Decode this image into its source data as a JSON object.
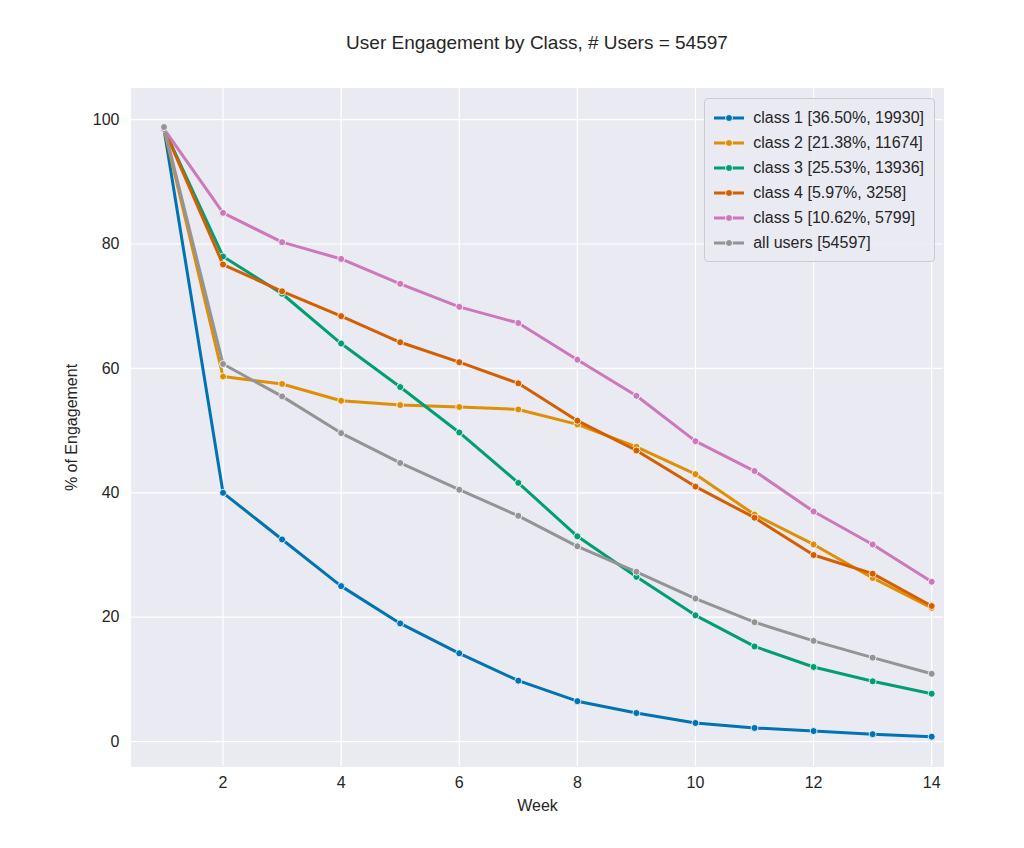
{
  "chart_data": {
    "type": "line",
    "title": "User Engagement by Class, # Users = 54597",
    "xlabel": "Week",
    "ylabel": "% of Engagement",
    "x": [
      1,
      2,
      3,
      4,
      5,
      6,
      7,
      8,
      9,
      10,
      11,
      12,
      13,
      14
    ],
    "series": [
      {
        "name": "class 1 [36.50%, 19930]",
        "color": "#0173b2",
        "values": [
          98.5,
          40,
          32.5,
          25,
          19,
          14.2,
          9.8,
          6.5,
          4.6,
          3,
          2.2,
          1.7,
          1.2,
          0.8
        ]
      },
      {
        "name": "class 2 [21.38%, 11674]",
        "color": "#de8f05",
        "values": [
          98.5,
          58.7,
          57.5,
          54.8,
          54.1,
          53.8,
          53.4,
          51,
          47.4,
          43,
          36.5,
          31.7,
          26.3,
          21.5
        ]
      },
      {
        "name": "class 3 [25.53%, 13936]",
        "color": "#029e73",
        "values": [
          98.5,
          78,
          72,
          64,
          57,
          49.7,
          41.6,
          33,
          26.5,
          20.3,
          15.3,
          12,
          9.7,
          7.7
        ]
      },
      {
        "name": "class 4 [5.97%, 3258]",
        "color": "#d55e00",
        "values": [
          98.5,
          76.7,
          72.4,
          68.4,
          64.2,
          61,
          57.6,
          51.6,
          46.8,
          41,
          36,
          30,
          27,
          21.8
        ]
      },
      {
        "name": "class 5 [10.62%, 5799]",
        "color": "#cc78bc",
        "values": [
          98.5,
          85,
          80.3,
          77.6,
          73.6,
          69.9,
          67.3,
          61.4,
          55.6,
          48.3,
          43.5,
          37,
          31.7,
          25.7
        ]
      },
      {
        "name": "all users [54597]",
        "color": "#949494",
        "values": [
          98.8,
          60.7,
          55.5,
          49.6,
          44.8,
          40.5,
          36.3,
          31.4,
          27.3,
          23,
          19.2,
          16.2,
          13.5,
          10.9
        ]
      }
    ],
    "xlim": [
      0.45,
      14.2
    ],
    "xticks": [
      2,
      4,
      6,
      8,
      10,
      12,
      14
    ],
    "ylim": [
      -4,
      105
    ],
    "yticks": [
      0,
      20,
      40,
      60,
      80,
      100
    ],
    "grid": true,
    "legend": "upper right",
    "marker": "o",
    "line_style": "solid"
  }
}
